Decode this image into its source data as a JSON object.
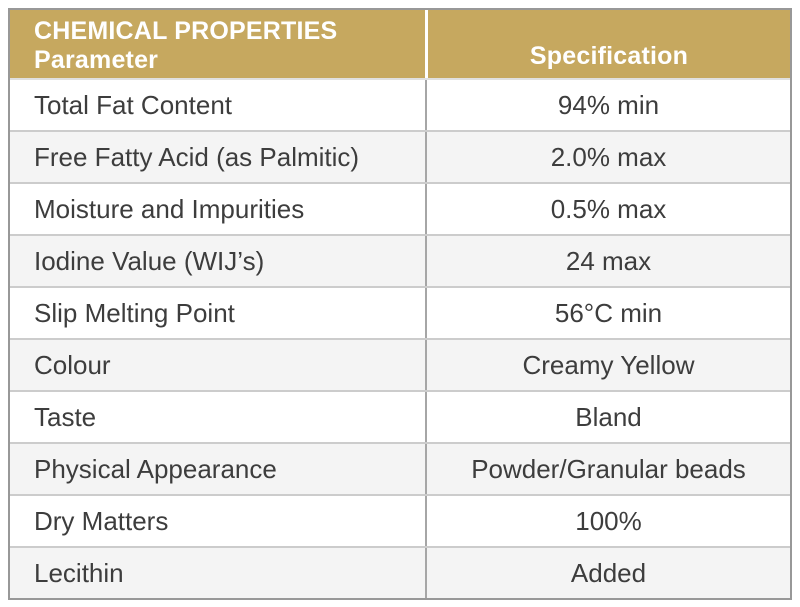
{
  "table": {
    "header": {
      "title": "CHEMICAL PROPERTIES",
      "param_label": "Parameter",
      "spec_label": "Specification"
    },
    "rows": [
      {
        "parameter": "Total Fat Content",
        "specification": "94% min"
      },
      {
        "parameter": "Free Fatty Acid (as Palmitic)",
        "specification": "2.0% max"
      },
      {
        "parameter": "Moisture and Impurities",
        "specification": "0.5% max"
      },
      {
        "parameter": "Iodine Value (WIJ’s)",
        "specification": "24 max"
      },
      {
        "parameter": "Slip Melting Point",
        "specification": "56°C min"
      },
      {
        "parameter": "Colour",
        "specification": "Creamy Yellow"
      },
      {
        "parameter": "Taste",
        "specification": "Bland"
      },
      {
        "parameter": "Physical Appearance",
        "specification": "Powder/Granular beads"
      },
      {
        "parameter": "Dry Matters",
        "specification": "100%"
      },
      {
        "parameter": "Lecithin",
        "specification": "Added"
      }
    ],
    "colors": {
      "header_bg": "#c6a85f",
      "header_text": "#ffffff",
      "row_alt_bg": "#f4f4f4",
      "body_text": "#3d3d3d",
      "outer_border": "#989898"
    }
  }
}
